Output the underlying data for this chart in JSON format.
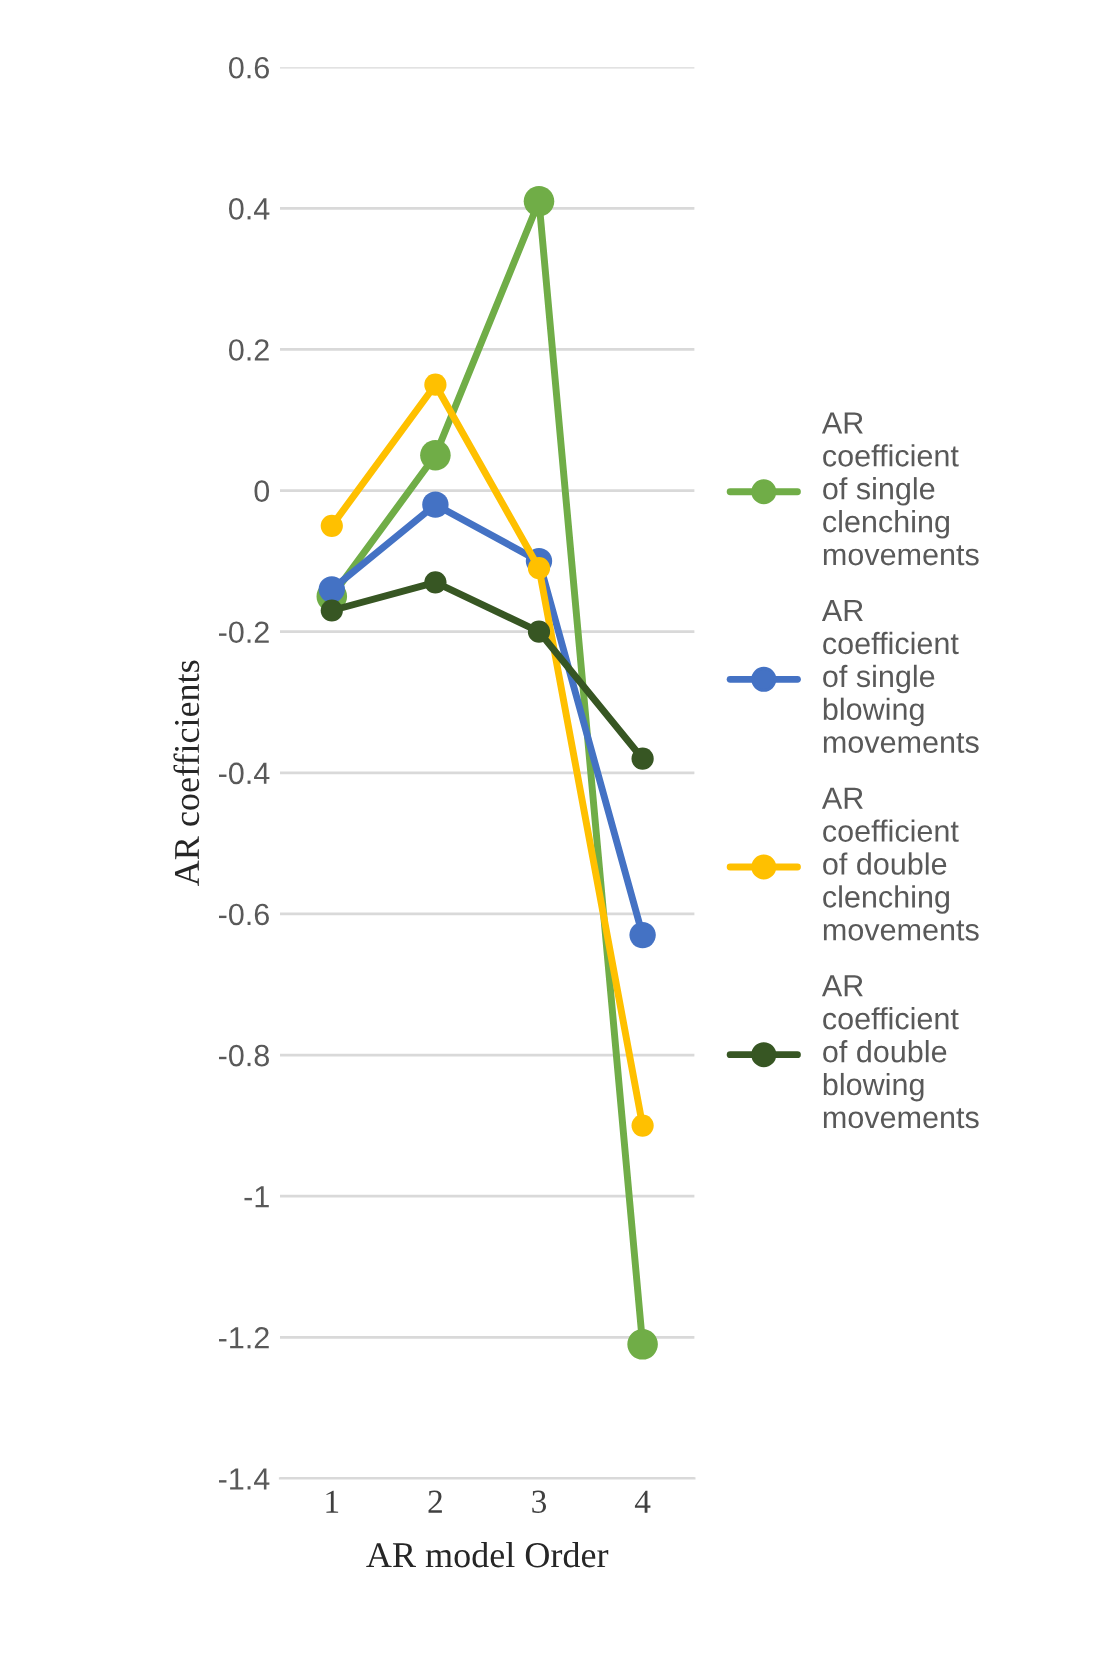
{
  "chart_data": {
    "type": "line",
    "xlabel": "AR model Order",
    "ylabel": "AR coefficients",
    "categories": [
      "1",
      "2",
      "3",
      "4"
    ],
    "series": [
      {
        "name": "AR coefficient of single clenching movements",
        "color": "#70ad47",
        "values": [
          -0.15,
          0.05,
          0.41,
          -1.21
        ]
      },
      {
        "name": "AR coefficient of single blowing movements",
        "color": "#4472c4",
        "values": [
          -0.14,
          -0.02,
          -0.1,
          -0.63
        ]
      },
      {
        "name": "AR coefficient of double clenching movements",
        "color": "#ffc000",
        "values": [
          -0.05,
          0.15,
          -0.11,
          -0.9
        ]
      },
      {
        "name": "AR coefficient of double blowing movements",
        "color": "#375623",
        "values": [
          -0.17,
          -0.13,
          -0.2,
          -0.38
        ]
      }
    ],
    "ylim": [
      -1.4,
      0.6
    ],
    "yticks": [
      0.6,
      0.4,
      0.2,
      0,
      -0.2,
      -0.4,
      -0.6,
      -0.8,
      -1,
      -1.2,
      -1.4
    ],
    "grid": "y",
    "legend": "right",
    "marker": "circle",
    "line_style": "solid"
  }
}
